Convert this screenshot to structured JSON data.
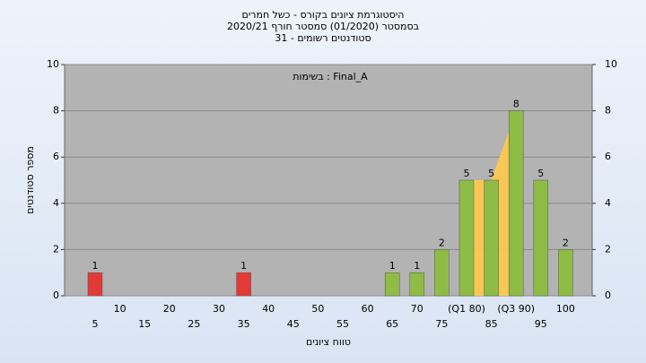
{
  "chart_data": {
    "type": "bar",
    "title": "היסטוגרמת ציונים בקורס - כשל חמרים",
    "subtitle": "בסמסטר  (01/2020)  סמסטר חורף  2020/21",
    "subtitle2": "סטודנטים רשומים - 31",
    "annotation": "בשימות : Final_A",
    "x_label": "טווח ציונים",
    "y_label": "מספר סטודנטים",
    "categories": [
      "5",
      "10",
      "15",
      "20",
      "25",
      "30",
      "35",
      "40",
      "45",
      "50",
      "55",
      "60",
      "65",
      "70",
      "75",
      "(Q1 80)",
      "85",
      "(Q3 90)",
      "95",
      "100"
    ],
    "values": [
      1,
      0,
      0,
      0,
      0,
      0,
      1,
      0,
      0,
      0,
      0,
      0,
      1,
      1,
      2,
      5,
      5,
      8,
      5,
      2
    ],
    "colors": [
      "#e23a36",
      "#e23a36",
      "#e23a36",
      "#e23a36",
      "#e23a36",
      "#e23a36",
      "#e23a36",
      "#e23a36",
      "#e23a36",
      "#e23a36",
      "#8fbc45",
      "#8fbc45",
      "#8fbc45",
      "#8fbc45",
      "#8fbc45",
      "#8fbc45",
      "#8fbc45",
      "#8fbc45",
      "#8fbc45",
      "#8fbc45"
    ],
    "quartile_color": "#ffc94a",
    "ylim": [
      0,
      10
    ],
    "yticks": [
      0,
      2,
      4,
      6,
      8,
      10
    ],
    "y2lim": [
      0,
      10
    ],
    "y2ticks": [
      0,
      2,
      4,
      6,
      8,
      10
    ],
    "grid": true
  }
}
